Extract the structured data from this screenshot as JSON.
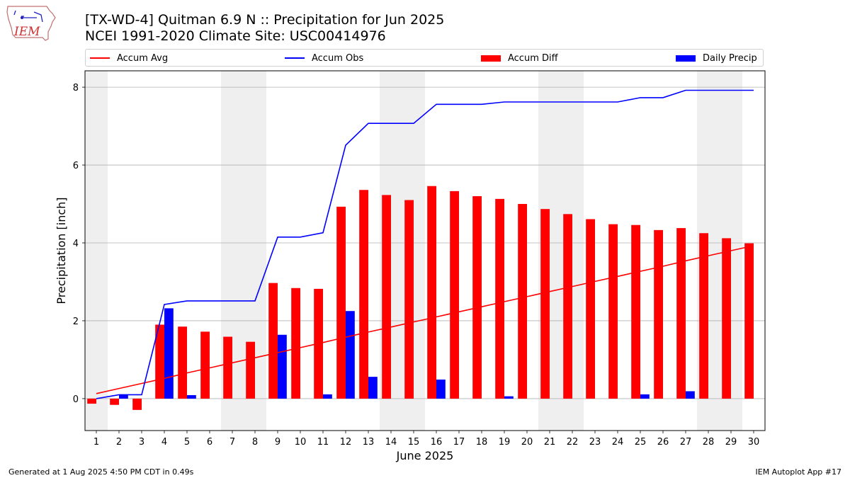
{
  "header": {
    "title_line1": "[TX-WD-4] Quitman 6.9 N :: Precipitation for Jun 2025",
    "title_line2": "NCEI 1991-2020 Climate Site: USC00414976",
    "logo_text": "IEM"
  },
  "footer": {
    "generated": "Generated at 1 Aug 2025 4:50 PM CDT in 0.49s",
    "app": "IEM Autoplot App #17"
  },
  "colors": {
    "avg": "#ff0000",
    "obs": "#0000ff",
    "diff": "#ff0000",
    "daily": "#0000ff",
    "weekend_band": "#efefef",
    "grid": "#b0b0b0"
  },
  "chart_data": {
    "type": "bar",
    "xlabel": "June 2025",
    "ylabel": "Precipitation [inch]",
    "xlim": [
      0.5,
      30.5
    ],
    "ylim": [
      -0.82,
      8.42
    ],
    "yticks": [
      0,
      2,
      4,
      6,
      8
    ],
    "grid": "horizontal",
    "legend_position": "top",
    "days": [
      1,
      2,
      3,
      4,
      5,
      6,
      7,
      8,
      9,
      10,
      11,
      12,
      13,
      14,
      15,
      16,
      17,
      18,
      19,
      20,
      21,
      22,
      23,
      24,
      25,
      26,
      27,
      28,
      29,
      30
    ],
    "weekend_days": [
      1,
      7,
      8,
      14,
      15,
      21,
      22,
      28,
      29
    ],
    "series": [
      {
        "name": "Accum Avg",
        "kind": "line",
        "values": [
          0.13,
          0.26,
          0.39,
          0.52,
          0.66,
          0.79,
          0.92,
          1.05,
          1.18,
          1.31,
          1.44,
          1.58,
          1.71,
          1.84,
          1.97,
          2.1,
          2.23,
          2.36,
          2.49,
          2.62,
          2.75,
          2.88,
          3.01,
          3.14,
          3.27,
          3.4,
          3.54,
          3.67,
          3.8,
          3.93
        ]
      },
      {
        "name": "Accum Obs",
        "kind": "line",
        "values": [
          0.0,
          0.1,
          0.1,
          2.42,
          2.51,
          2.51,
          2.51,
          2.51,
          4.15,
          4.15,
          4.26,
          6.51,
          7.07,
          7.07,
          7.07,
          7.56,
          7.56,
          7.56,
          7.62,
          7.62,
          7.62,
          7.62,
          7.62,
          7.62,
          7.73,
          7.73,
          7.92,
          7.92,
          7.92,
          7.92
        ]
      },
      {
        "name": "Accum Diff",
        "kind": "bar",
        "values": [
          -0.13,
          -0.16,
          -0.29,
          1.9,
          1.85,
          1.72,
          1.59,
          1.46,
          2.97,
          2.84,
          2.82,
          4.93,
          5.36,
          5.23,
          5.1,
          5.46,
          5.33,
          5.2,
          5.13,
          5.0,
          4.87,
          4.74,
          4.61,
          4.48,
          4.46,
          4.33,
          4.38,
          4.25,
          4.12,
          3.99
        ]
      },
      {
        "name": "Daily Precip",
        "kind": "bar",
        "values": [
          0.0,
          0.1,
          0.0,
          2.32,
          0.09,
          0.0,
          0.0,
          0.0,
          1.64,
          0.0,
          0.11,
          2.25,
          0.56,
          0.0,
          0.0,
          0.49,
          0.0,
          0.0,
          0.06,
          0.0,
          0.0,
          0.0,
          0.0,
          0.0,
          0.11,
          0.0,
          0.19,
          0.0,
          0.0,
          0.0
        ]
      }
    ]
  }
}
